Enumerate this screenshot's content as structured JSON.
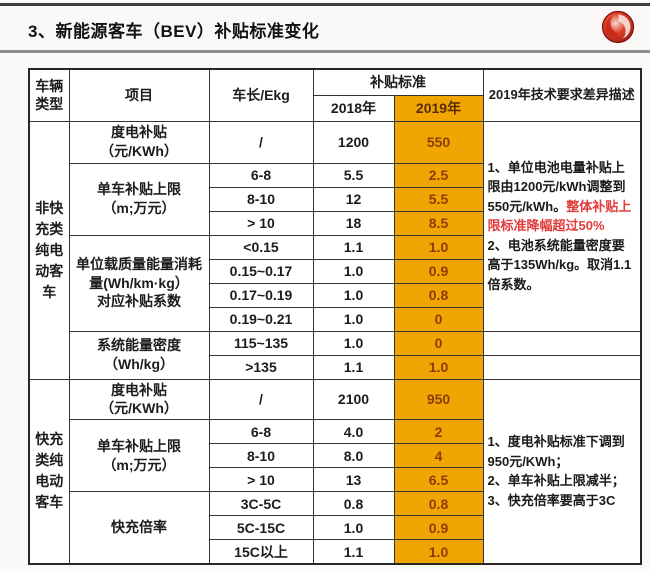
{
  "title": "3、新能源客车（BEV）补贴标准变化",
  "logo": "dongfeng-logo",
  "colors": {
    "highlight_bg": "#F0A502",
    "highlight_header_text": "#5A2B02",
    "highlight_value_text": "#8A3D05",
    "alert_red": "#E23B3B"
  },
  "table": {
    "headers": {
      "vehicle_type": "车辆\n类型",
      "item": "项目",
      "length": "车长/Ekg",
      "subsidy_standard": "补贴标准",
      "year_2018": "2018年",
      "year_2019": "2019年",
      "diff_description": "2019年技术要求差异描述"
    },
    "sections": [
      {
        "vehicle_type": "非快\n充类\n纯电\n动客\n车",
        "desc_span": 8,
        "groups": [
          {
            "item": "度电补贴\n（元/KWh）",
            "rows": [
              {
                "length": "/",
                "y2018": "1200",
                "y2019": "550"
              }
            ]
          },
          {
            "item": "单车补贴上限\n（m;万元）",
            "rows": [
              {
                "length": "6-8",
                "y2018": "5.5",
                "y2019": "2.5"
              },
              {
                "length": "8-10",
                "y2018": "12",
                "y2019": "5.5"
              },
              {
                "length": "> 10",
                "y2018": "18",
                "y2019": "8.5"
              }
            ]
          },
          {
            "item": "单位载质量能量消耗\n量(Wh/km·kg）\n对应补贴系数",
            "rows": [
              {
                "length": "<0.15",
                "y2018": "1.1",
                "y2019": "1.0"
              },
              {
                "length": "0.15~0.17",
                "y2018": "1.0",
                "y2019": "0.9"
              },
              {
                "length": "0.17~0.19",
                "y2018": "1.0",
                "y2019": "0.8"
              },
              {
                "length": "0.19~0.21",
                "y2018": "1.0",
                "y2019": "0"
              }
            ]
          },
          {
            "item": "系统能量密度\n（Wh/kg）",
            "rows": [
              {
                "length": "115~135",
                "y2018": "1.0",
                "y2019": "0"
              },
              {
                "length": ">135",
                "y2018": "1.1",
                "y2019": "1.0"
              }
            ]
          }
        ],
        "description": [
          {
            "parts": [
              {
                "text": "1、单位电池电量补贴上限由1200元/kWh调整到550元/kWh。",
                "red": false
              },
              {
                "text": "整体补贴上限标准降幅超过50%",
                "red": true
              }
            ]
          },
          {
            "parts": [
              {
                "text": "2、电池系统能量密度要高于135Wh/kg。取消1.1倍系数。",
                "red": false
              }
            ]
          }
        ]
      },
      {
        "vehicle_type": "快充\n类纯\n电动\n客车",
        "desc_span": 7,
        "groups": [
          {
            "item": "度电补贴\n（元/KWh）",
            "rows": [
              {
                "length": "/",
                "y2018": "2100",
                "y2019": "950"
              }
            ]
          },
          {
            "item": "单车补贴上限\n（m;万元）",
            "rows": [
              {
                "length": "6-8",
                "y2018": "4.0",
                "y2019": "2"
              },
              {
                "length": "8-10",
                "y2018": "8.0",
                "y2019": "4"
              },
              {
                "length": "> 10",
                "y2018": "13",
                "y2019": "6.5"
              }
            ]
          },
          {
            "item": "快充倍率",
            "rows": [
              {
                "length": "3C-5C",
                "y2018": "0.8",
                "y2019": "0.8"
              },
              {
                "length": "5C-15C",
                "y2018": "1.0",
                "y2019": "0.9"
              },
              {
                "length": "15C以上",
                "y2018": "1.1",
                "y2019": "1.0"
              }
            ]
          }
        ],
        "description": [
          {
            "parts": [
              {
                "text": "1、度电补贴标准下调到950元/KWh；",
                "red": false
              }
            ]
          },
          {
            "parts": [
              {
                "text": "2、单车补贴上限减半；",
                "red": false
              }
            ]
          },
          {
            "parts": [
              {
                "text": "3、快充倍率要高于3C",
                "red": false
              }
            ]
          }
        ]
      }
    ]
  }
}
